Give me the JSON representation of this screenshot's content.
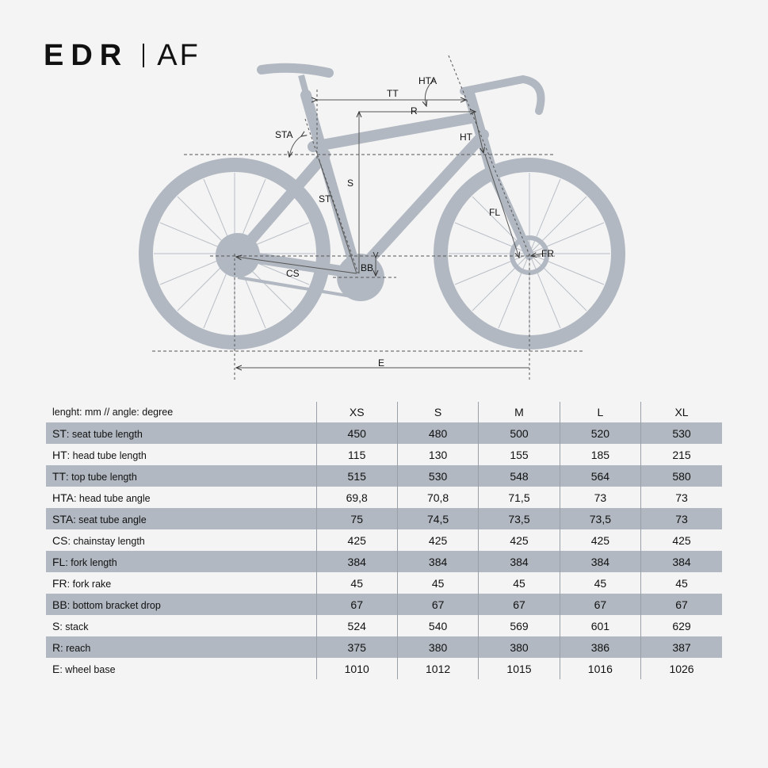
{
  "title": {
    "brand": "EDR",
    "model": "AF"
  },
  "diagram": {
    "labels": {
      "tt": "TT",
      "r": "R",
      "hta": "HTA",
      "sta": "STA",
      "ht": "HT",
      "s": "S",
      "st": "ST",
      "fl": "FL",
      "fr": "FR",
      "bb": "BB",
      "cs": "CS",
      "e": "E"
    },
    "colors": {
      "bike": "#b1b8c1",
      "lines": "#333333",
      "background": "#f4f4f4"
    }
  },
  "table": {
    "unit_note": "lenght: mm // angle: degree",
    "sizes": [
      "XS",
      "S",
      "M",
      "L",
      "XL"
    ],
    "rows": [
      {
        "code": "ST",
        "name": "seat tube length",
        "values": [
          "450",
          "480",
          "500",
          "520",
          "530"
        ]
      },
      {
        "code": "HT",
        "name": "head tube length",
        "values": [
          "115",
          "130",
          "155",
          "185",
          "215"
        ]
      },
      {
        "code": "TT",
        "name": "top tube length",
        "values": [
          "515",
          "530",
          "548",
          "564",
          "580"
        ]
      },
      {
        "code": "HTA",
        "name": "head tube angle",
        "values": [
          "69,8",
          "70,8",
          "71,5",
          "73",
          "73"
        ]
      },
      {
        "code": "STA",
        "name": "seat tube angle",
        "values": [
          "75",
          "74,5",
          "73,5",
          "73,5",
          "73"
        ]
      },
      {
        "code": "CS",
        "name": "chainstay length",
        "values": [
          "425",
          "425",
          "425",
          "425",
          "425"
        ]
      },
      {
        "code": "FL",
        "name": "fork length",
        "values": [
          "384",
          "384",
          "384",
          "384",
          "384"
        ]
      },
      {
        "code": "FR",
        "name": "fork rake",
        "values": [
          "45",
          "45",
          "45",
          "45",
          "45"
        ]
      },
      {
        "code": "BB",
        "name": "bottom bracket drop",
        "values": [
          "67",
          "67",
          "67",
          "67",
          "67"
        ]
      },
      {
        "code": "S",
        "name": "stack",
        "values": [
          "524",
          "540",
          "569",
          "601",
          "629"
        ]
      },
      {
        "code": "R",
        "name": "reach",
        "values": [
          "375",
          "380",
          "380",
          "386",
          "387"
        ]
      },
      {
        "code": "E",
        "name": "wheel base",
        "values": [
          "1010",
          "1012",
          "1015",
          "1016",
          "1026"
        ]
      }
    ]
  }
}
